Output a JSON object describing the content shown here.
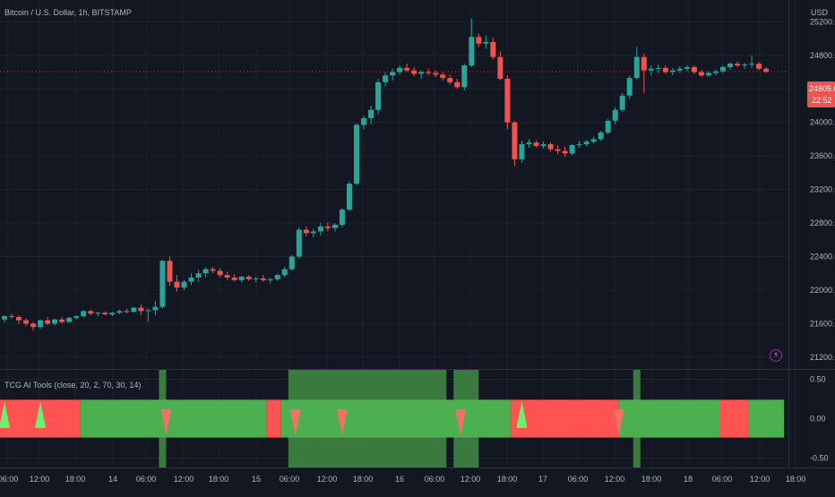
{
  "header": {
    "title": "Bitcoin / U.S. Dollar, 1h, BITSTAMP",
    "currency": "USD"
  },
  "indicator": {
    "label": "TCG AI Tools (close, 20, 2, 70, 30, 14)"
  },
  "last_price": {
    "value": "24605.00",
    "countdown": "22:52"
  },
  "colors": {
    "background": "#131722",
    "grid": "#1e222d",
    "up": "#26a69a",
    "down": "#ef5350",
    "band_green": "#4caf50",
    "band_red": "#ff5252",
    "highlight": "#3a7a3e",
    "marker_up": "#69f06f",
    "marker_down": "#f07167",
    "price_tag": "#ef5350"
  },
  "chart_data": [
    {
      "type": "candlestick",
      "title": "Bitcoin / U.S. Dollar, 1h, BITSTAMP",
      "y_axis_label": "USD",
      "price_ticks": [
        "25200.00",
        "24800.00",
        "24400.00",
        "24000.00",
        "23600.00",
        "23200.00",
        "22800.00",
        "22400.00",
        "22000.00",
        "21600.00",
        "21200.00"
      ],
      "ylim": [
        21060,
        25460
      ],
      "last_price": 24605,
      "time_ticks": [
        "06:00",
        "12:00",
        "18:00",
        "14",
        "06:00",
        "12:00",
        "18:00",
        "15",
        "06:00",
        "12:00",
        "18:00",
        "16",
        "06:00",
        "12:00",
        "18:00",
        "17",
        "06:00",
        "12:00",
        "18:00",
        "18",
        "06:00",
        "12:00",
        "18:00"
      ],
      "candles": [
        [
          21650,
          21700,
          21620,
          21690
        ],
        [
          21690,
          21720,
          21660,
          21680
        ],
        [
          21680,
          21700,
          21600,
          21640
        ],
        [
          21640,
          21660,
          21570,
          21600
        ],
        [
          21600,
          21620,
          21520,
          21560
        ],
        [
          21560,
          21650,
          21540,
          21640
        ],
        [
          21640,
          21680,
          21580,
          21600
        ],
        [
          21600,
          21660,
          21580,
          21650
        ],
        [
          21650,
          21680,
          21600,
          21620
        ],
        [
          21620,
          21680,
          21610,
          21670
        ],
        [
          21670,
          21700,
          21650,
          21690
        ],
        [
          21690,
          21760,
          21670,
          21750
        ],
        [
          21750,
          21770,
          21700,
          21720
        ],
        [
          21720,
          21740,
          21690,
          21730
        ],
        [
          21730,
          21750,
          21700,
          21710
        ],
        [
          21710,
          21740,
          21690,
          21730
        ],
        [
          21730,
          21770,
          21710,
          21750
        ],
        [
          21750,
          21780,
          21720,
          21740
        ],
        [
          21740,
          21800,
          21730,
          21790
        ],
        [
          21790,
          21830,
          21700,
          21750
        ],
        [
          21750,
          21780,
          21620,
          21760
        ],
        [
          21760,
          21870,
          21700,
          21800
        ],
        [
          21800,
          22360,
          21780,
          22350
        ],
        [
          22350,
          22400,
          22050,
          22100
        ],
        [
          22100,
          22180,
          21980,
          22030
        ],
        [
          22030,
          22120,
          22000,
          22100
        ],
        [
          22100,
          22200,
          22060,
          22150
        ],
        [
          22150,
          22240,
          22100,
          22200
        ],
        [
          22200,
          22270,
          22150,
          22250
        ],
        [
          22250,
          22280,
          22200,
          22230
        ],
        [
          22230,
          22260,
          22150,
          22180
        ],
        [
          22180,
          22220,
          22120,
          22150
        ],
        [
          22150,
          22190,
          22100,
          22120
        ],
        [
          22120,
          22170,
          22090,
          22160
        ],
        [
          22160,
          22180,
          22110,
          22130
        ],
        [
          22130,
          22160,
          22090,
          22140
        ],
        [
          22140,
          22180,
          22100,
          22120
        ],
        [
          22120,
          22150,
          22080,
          22130
        ],
        [
          22130,
          22200,
          22110,
          22180
        ],
        [
          22180,
          22280,
          22150,
          22250
        ],
        [
          22250,
          22420,
          22230,
          22400
        ],
        [
          22400,
          22750,
          22380,
          22720
        ],
        [
          22720,
          22760,
          22640,
          22680
        ],
        [
          22680,
          22730,
          22630,
          22700
        ],
        [
          22700,
          22800,
          22650,
          22760
        ],
        [
          22760,
          22810,
          22700,
          22740
        ],
        [
          22740,
          22800,
          22700,
          22780
        ],
        [
          22780,
          22980,
          22750,
          22960
        ],
        [
          22960,
          23300,
          22940,
          23270
        ],
        [
          23270,
          23990,
          23250,
          23970
        ],
        [
          23970,
          24080,
          23920,
          24050
        ],
        [
          24050,
          24200,
          23980,
          24150
        ],
        [
          24150,
          24520,
          24100,
          24480
        ],
        [
          24480,
          24600,
          24430,
          24560
        ],
        [
          24560,
          24640,
          24500,
          24600
        ],
        [
          24600,
          24680,
          24570,
          24650
        ],
        [
          24650,
          24700,
          24600,
          24620
        ],
        [
          24620,
          24660,
          24550,
          24580
        ],
        [
          24580,
          24620,
          24520,
          24600
        ],
        [
          24600,
          24640,
          24560,
          24590
        ],
        [
          24590,
          24620,
          24540,
          24570
        ],
        [
          24570,
          24600,
          24500,
          24530
        ],
        [
          24530,
          24570,
          24450,
          24480
        ],
        [
          24480,
          24520,
          24400,
          24420
        ],
        [
          24420,
          24700,
          24380,
          24680
        ],
        [
          24680,
          25240,
          24660,
          25020
        ],
        [
          25020,
          25060,
          24900,
          24940
        ],
        [
          24940,
          25040,
          24880,
          24960
        ],
        [
          24960,
          25010,
          24750,
          24780
        ],
        [
          24780,
          24850,
          24500,
          24520
        ],
        [
          24520,
          24560,
          23920,
          24000
        ],
        [
          24000,
          24020,
          23480,
          23560
        ],
        [
          23560,
          23780,
          23520,
          23740
        ],
        [
          23740,
          23800,
          23700,
          23760
        ],
        [
          23760,
          23790,
          23700,
          23720
        ],
        [
          23720,
          23770,
          23690,
          23740
        ],
        [
          23740,
          23760,
          23650,
          23680
        ],
        [
          23680,
          23730,
          23620,
          23660
        ],
        [
          23660,
          23710,
          23590,
          23630
        ],
        [
          23630,
          23740,
          23610,
          23730
        ],
        [
          23730,
          23780,
          23700,
          23740
        ],
        [
          23740,
          23790,
          23720,
          23770
        ],
        [
          23770,
          23830,
          23750,
          23800
        ],
        [
          23800,
          23900,
          23780,
          23880
        ],
        [
          23880,
          24040,
          23860,
          24020
        ],
        [
          24020,
          24180,
          23980,
          24150
        ],
        [
          24150,
          24350,
          24120,
          24320
        ],
        [
          24320,
          24560,
          24280,
          24530
        ],
        [
          24530,
          24900,
          24510,
          24780
        ],
        [
          24780,
          24820,
          24350,
          24620
        ],
        [
          24620,
          24680,
          24560,
          24640
        ],
        [
          24640,
          24690,
          24590,
          24650
        ],
        [
          24650,
          24680,
          24580,
          24600
        ],
        [
          24600,
          24650,
          24560,
          24620
        ],
        [
          24620,
          24670,
          24590,
          24640
        ],
        [
          24640,
          24680,
          24610,
          24660
        ],
        [
          24660,
          24680,
          24580,
          24600
        ],
        [
          24600,
          24630,
          24540,
          24560
        ],
        [
          24560,
          24610,
          24540,
          24590
        ],
        [
          24590,
          24630,
          24560,
          24610
        ],
        [
          24610,
          24680,
          24590,
          24660
        ],
        [
          24660,
          24720,
          24630,
          24700
        ],
        [
          24700,
          24730,
          24660,
          24680
        ],
        [
          24680,
          24710,
          24640,
          24690
        ],
        [
          24690,
          24800,
          24650,
          24700
        ],
        [
          24700,
          24720,
          24620,
          24640
        ],
        [
          24640,
          24660,
          24590,
          24605
        ]
      ]
    },
    {
      "type": "band-indicator",
      "label": "TCG AI Tools (close, 20, 2, 70, 30, 14)",
      "value_ticks": [
        "0.50",
        "0.00",
        "-0.50"
      ],
      "ylim": [
        -0.62,
        0.62
      ],
      "band_range": [
        -0.24,
        0.24
      ],
      "band_segments": [
        {
          "from": 0,
          "to": 11,
          "state": "red"
        },
        {
          "from": 11,
          "to": 37,
          "state": "green"
        },
        {
          "from": 37,
          "to": 39,
          "state": "red"
        },
        {
          "from": 39,
          "to": 71,
          "state": "green"
        },
        {
          "from": 71,
          "to": 86,
          "state": "red"
        },
        {
          "from": 86,
          "to": 100,
          "state": "green"
        },
        {
          "from": 100,
          "to": 104,
          "state": "red"
        },
        {
          "from": 104,
          "to": 109,
          "state": "green"
        }
      ],
      "highlights": [
        {
          "from": 22,
          "to": 23
        },
        {
          "from": 40,
          "to": 62
        },
        {
          "from": 63,
          "to": 66.5
        },
        {
          "from": 88,
          "to": 89
        }
      ],
      "markers": [
        {
          "bar": 0,
          "type": "up"
        },
        {
          "bar": 5,
          "type": "up"
        },
        {
          "bar": 22.5,
          "type": "down"
        },
        {
          "bar": 40.5,
          "type": "down"
        },
        {
          "bar": 47,
          "type": "down"
        },
        {
          "bar": 63.5,
          "type": "down"
        },
        {
          "bar": 72,
          "type": "up"
        },
        {
          "bar": 85.5,
          "type": "down"
        }
      ]
    }
  ]
}
